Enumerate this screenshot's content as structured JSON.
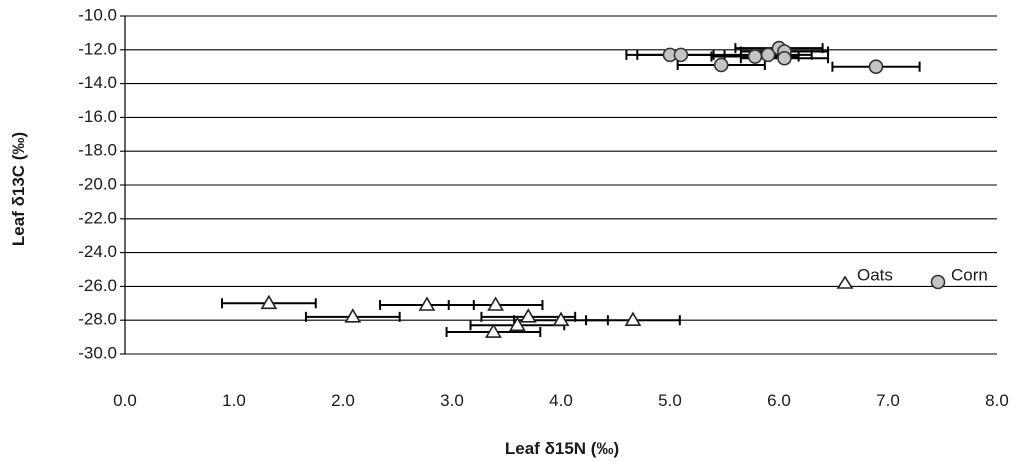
{
  "chart_data": {
    "type": "scatter",
    "title": "",
    "xlabel": "Leaf δ15N (‰)",
    "ylabel": "Leaf δ13C (‰)",
    "xlim": [
      0,
      8
    ],
    "ylim": [
      -30,
      -10
    ],
    "x_ticks": [
      "0.0",
      "1.0",
      "2.0",
      "3.0",
      "4.0",
      "5.0",
      "6.0",
      "7.0",
      "8.0"
    ],
    "y_ticks": [
      "-10.0",
      "-12.0",
      "-14.0",
      "-16.0",
      "-18.0",
      "-20.0",
      "-22.0",
      "-24.0",
      "-26.0",
      "-28.0",
      "-30.0"
    ],
    "grid": "horizontal",
    "legend_position": "right",
    "series": [
      {
        "name": "Oats",
        "marker": "triangle",
        "points": [
          {
            "x": 1.32,
            "y": -27.0,
            "xerr": 0.43
          },
          {
            "x": 2.09,
            "y": -27.8,
            "xerr": 0.43
          },
          {
            "x": 2.77,
            "y": -27.1,
            "xerr": 0.43
          },
          {
            "x": 3.4,
            "y": -27.1,
            "xerr": 0.43
          },
          {
            "x": 3.38,
            "y": -28.7,
            "xerr": 0.43
          },
          {
            "x": 3.6,
            "y": -28.3,
            "xerr": 0.43
          },
          {
            "x": 3.7,
            "y": -27.8,
            "xerr": 0.43
          },
          {
            "x": 4.0,
            "y": -28.0,
            "xerr": 0.43
          },
          {
            "x": 4.66,
            "y": -28.0,
            "xerr": 0.43
          }
        ]
      },
      {
        "name": "Corn",
        "marker": "circle",
        "points": [
          {
            "x": 5.0,
            "y": -12.3,
            "xerr": 0.4
          },
          {
            "x": 5.1,
            "y": -12.3,
            "xerr": 0.4
          },
          {
            "x": 5.47,
            "y": -12.9,
            "xerr": 0.4
          },
          {
            "x": 5.78,
            "y": -12.4,
            "xerr": 0.4
          },
          {
            "x": 5.9,
            "y": -12.3,
            "xerr": 0.4
          },
          {
            "x": 6.0,
            "y": -11.9,
            "xerr": 0.4
          },
          {
            "x": 6.05,
            "y": -12.1,
            "xerr": 0.4
          },
          {
            "x": 6.05,
            "y": -12.5,
            "xerr": 0.4
          },
          {
            "x": 6.89,
            "y": -13.0,
            "xerr": 0.4
          }
        ]
      }
    ]
  }
}
